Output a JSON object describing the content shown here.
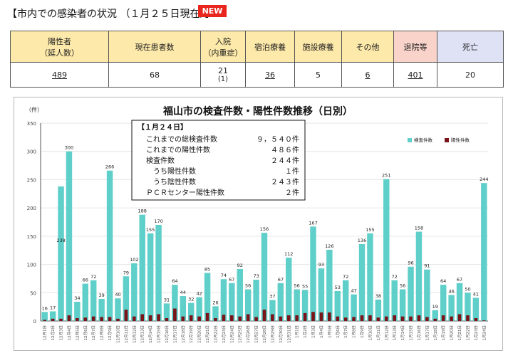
{
  "header": {
    "title": "【市内での感染者の状況 （１月２５日現在）】",
    "new_badge": "NEW"
  },
  "summary": {
    "cumulative_label_line1": "陽性者",
    "cumulative_label_line2": "（延人数）",
    "current_label": "現在患者数",
    "hospital_label_line1": "入院",
    "hospital_label_line2": "（内重症）",
    "hotel_label": "宿泊療養",
    "facility_label": "施設療養",
    "other_label": "その他",
    "discharged_label": "退院等",
    "deaths_label": "死亡",
    "cumulative_value": "489",
    "current_value": "68",
    "hospital_value": "21",
    "hospital_severe_value": "(1)",
    "hotel_value": "36",
    "facility_value": "5",
    "other_value": "6",
    "discharged_value": "401",
    "deaths_value": "20"
  },
  "info_box": {
    "heading": "【１月２４日】",
    "rows": [
      {
        "label": "これまでの総検査件数",
        "value": "９，５４０件"
      },
      {
        "label": "これまでの陽性件数",
        "value": "４８６件"
      },
      {
        "label": "検査件数",
        "value": "２４４件"
      },
      {
        "label": "　うち陽性件数",
        "value": "１件"
      },
      {
        "label": "　うち陰性件数",
        "value": "２４３件"
      },
      {
        "label": "ＰＣＲセンター陽性件数",
        "value": "２件"
      }
    ]
  },
  "colors": {
    "tests": "#5fcfc9",
    "positives": "#7a1418",
    "axis": "#555555",
    "grid": "#e6e6e6"
  },
  "chart_data": {
    "type": "bar",
    "title": "福山市の検査件数・陽性件数推移（日別）",
    "ylabel": "（件）",
    "ylim": [
      0,
      350
    ],
    "yticks": [
      0,
      50,
      100,
      150,
      200,
      250,
      300,
      350
    ],
    "legend_position": "top-right",
    "categories": [
      "12月1日",
      "12月2日",
      "12月3日",
      "12月4日",
      "12月5日",
      "12月6日",
      "12月7日",
      "12月8日",
      "12月9日",
      "12月10日",
      "12月11日",
      "12月12日",
      "12月13日",
      "12月14日",
      "12月15日",
      "12月16日",
      "12月17日",
      "12月18日",
      "12月19日",
      "12月20日",
      "12月21日",
      "12月22日",
      "12月23日",
      "12月24日",
      "12月25日",
      "12月26日",
      "12月27日",
      "12月28日",
      "12月29日",
      "12月30日",
      "12月31日",
      "1月1日",
      "1月2日",
      "1月3日",
      "1月4日",
      "1月5日",
      "1月6日",
      "1月7日",
      "1月8日",
      "1月9日",
      "1月10日",
      "1月11日",
      "1月12日",
      "1月13日",
      "1月14日",
      "1月15日",
      "1月16日",
      "1月17日",
      "1月18日",
      "1月19日",
      "1月20日",
      "1月21日",
      "1月22日",
      "1月23日",
      "1月24日"
    ],
    "series": [
      {
        "name": "検査件数",
        "values": [
          16,
          17,
          238,
          300,
          34,
          66,
          72,
          39,
          266,
          40,
          79,
          102,
          188,
          155,
          170,
          31,
          64,
          44,
          32,
          42,
          85,
          26,
          74,
          67,
          92,
          56,
          73,
          156,
          37,
          67,
          112,
          56,
          55,
          167,
          93,
          126,
          53,
          72,
          47,
          136,
          155,
          38,
          251,
          72,
          56,
          96,
          158,
          91,
          19,
          64,
          46,
          67,
          50,
          41,
          244
        ],
        "labels": [
          "16",
          "17",
          "238",
          "300",
          "34",
          "66",
          "72",
          "39",
          "266",
          "40",
          "79",
          "102",
          "188",
          "155",
          "170",
          "31",
          "64",
          "44",
          "32",
          "42",
          "85",
          "26",
          "74",
          "67",
          "92",
          "56",
          "73",
          "156",
          "37",
          "67",
          "112",
          "56",
          "55",
          "167",
          "93",
          "126",
          "53",
          "72",
          "47",
          "136",
          "155",
          "38",
          "251",
          "72",
          "56",
          "96",
          "158",
          "91",
          "19",
          "64",
          "46",
          "67",
          "50",
          "41",
          "244"
        ]
      },
      {
        "name": "陽性件数",
        "values": [
          2,
          4,
          4,
          10,
          5,
          6,
          8,
          7,
          7,
          4,
          20,
          8,
          12,
          10,
          12,
          5,
          22,
          8,
          10,
          8,
          14,
          5,
          11,
          10,
          8,
          12,
          7,
          20,
          12,
          8,
          10,
          10,
          14,
          16,
          15,
          15,
          8,
          6,
          7,
          10,
          10,
          6,
          8,
          10,
          8,
          8,
          10,
          7,
          4,
          10,
          8,
          12,
          10,
          5,
          1
        ]
      }
    ]
  }
}
